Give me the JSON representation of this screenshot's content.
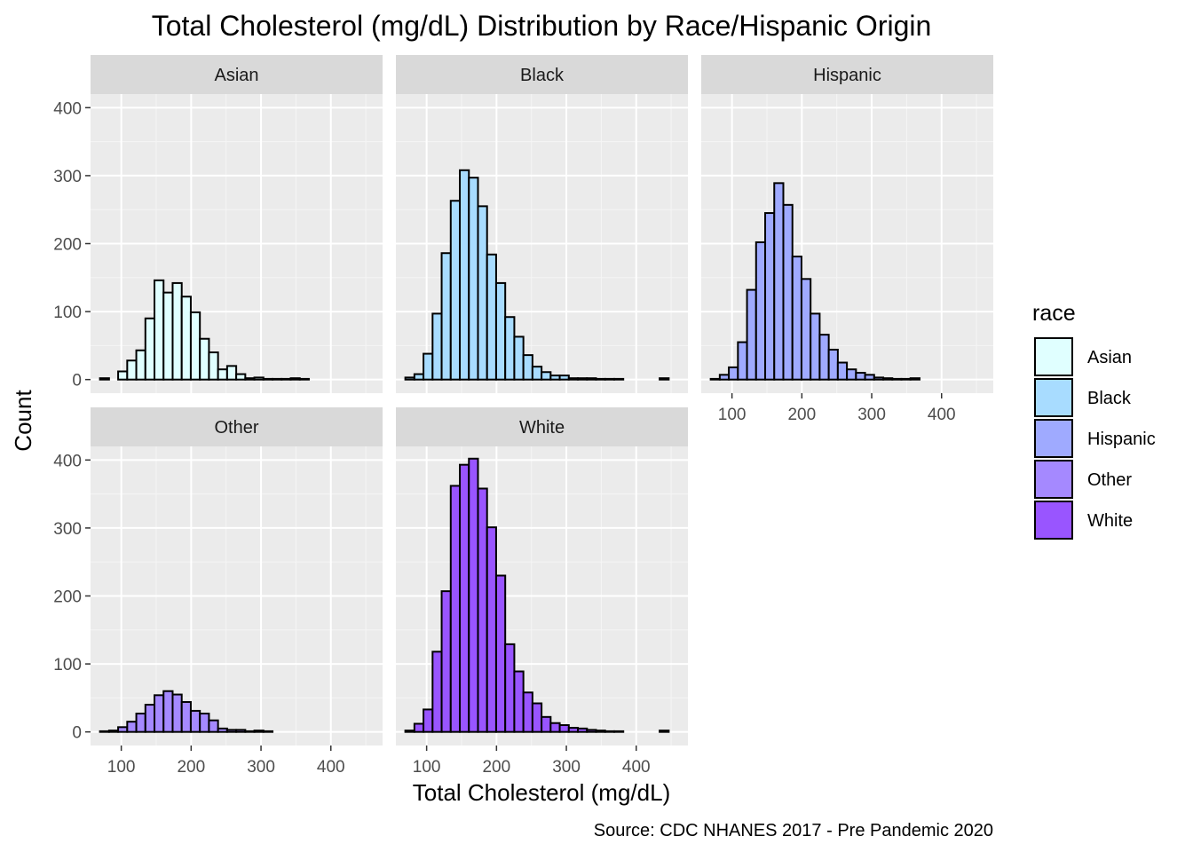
{
  "chart_data": {
    "type": "bar",
    "title": "Total Cholesterol (mg/dL) Distribution by Race/Hispanic Origin",
    "xlabel": "Total Cholesterol (mg/dL)",
    "ylabel": "Count",
    "caption": "Source: CDC NHANES 2017 - Pre Pandemic 2020",
    "xlim": [
      56,
      474
    ],
    "ylim": [
      -20,
      420
    ],
    "x_ticks": [
      100,
      200,
      300,
      400
    ],
    "y_ticks": [
      0,
      100,
      200,
      300,
      400
    ],
    "grid": true,
    "bin_width": 13,
    "bin_centers": [
      76,
      89,
      102,
      115,
      128,
      141,
      154,
      167,
      180,
      193,
      206,
      219,
      232,
      245,
      258,
      271,
      284,
      297,
      310,
      323,
      336,
      349,
      362,
      375,
      388,
      401,
      414,
      427,
      440,
      453
    ],
    "legend": {
      "title": "race",
      "placement": "right",
      "items": [
        "Asian",
        "Black",
        "Hispanic",
        "Other",
        "White"
      ]
    },
    "series": [
      {
        "name": "Asian",
        "color": "#e0ffff",
        "values": [
          2,
          0,
          12,
          28,
          43,
          90,
          146,
          128,
          142,
          122,
          99,
          60,
          40,
          15,
          20,
          8,
          2,
          3,
          1,
          1,
          1,
          2,
          1,
          0,
          0,
          0,
          0,
          0,
          0,
          0
        ]
      },
      {
        "name": "Black",
        "color": "#a8dcff",
        "values": [
          3,
          8,
          38,
          97,
          186,
          263,
          308,
          297,
          255,
          184,
          142,
          92,
          63,
          36,
          19,
          11,
          6,
          6,
          2,
          2,
          2,
          1,
          1,
          1,
          0,
          0,
          0,
          0,
          2,
          0
        ]
      },
      {
        "name": "Hispanic",
        "color": "#9faaff",
        "values": [
          1,
          7,
          18,
          55,
          132,
          202,
          245,
          289,
          257,
          181,
          148,
          97,
          66,
          44,
          25,
          15,
          10,
          7,
          3,
          2,
          1,
          1,
          2,
          0,
          0,
          0,
          0,
          0,
          0,
          0
        ]
      },
      {
        "name": "Other",
        "color": "#a589ff",
        "values": [
          1,
          2,
          7,
          15,
          27,
          40,
          54,
          60,
          55,
          44,
          31,
          27,
          17,
          5,
          3,
          3,
          1,
          2,
          1,
          0,
          0,
          0,
          0,
          0,
          0,
          0,
          0,
          0,
          0,
          0
        ]
      },
      {
        "name": "White",
        "color": "#9955ff",
        "values": [
          2,
          12,
          33,
          118,
          207,
          362,
          393,
          402,
          358,
          301,
          230,
          129,
          89,
          58,
          42,
          22,
          13,
          10,
          6,
          5,
          3,
          2,
          1,
          1,
          0,
          0,
          0,
          0,
          2,
          0
        ]
      }
    ]
  }
}
